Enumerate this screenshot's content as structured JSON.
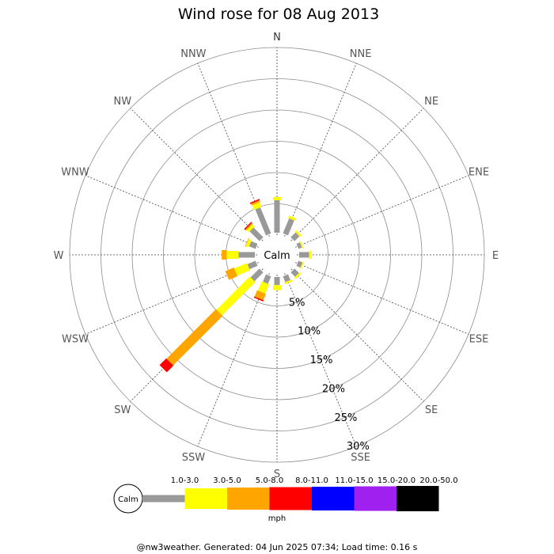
{
  "chart_data": {
    "type": "wind-rose",
    "title": "Wind rose for 08 Aug 2013",
    "directions": [
      "N",
      "NNE",
      "NE",
      "ENE",
      "E",
      "ESE",
      "SE",
      "SSE",
      "S",
      "SSW",
      "SW",
      "WSW",
      "W",
      "WNW",
      "NW",
      "NNW"
    ],
    "ring_labels": [
      "5%",
      "10%",
      "15%",
      "20%",
      "25%",
      "30%"
    ],
    "rlim_percent": [
      0,
      30
    ],
    "calm_label": "Calm",
    "speed_bins": [
      {
        "label": "1.0-3.0",
        "color": "#999999"
      },
      {
        "label": "3.0-5.0",
        "color": "#ffff00"
      },
      {
        "label": "5.0-8.0",
        "color": "#ffa500"
      },
      {
        "label": "8.0-11.0",
        "color": "#ff0000"
      },
      {
        "label": "11.0-15.0",
        "color": "#0000ff"
      },
      {
        "label": "15.0-20.0",
        "color": "#a020f0"
      },
      {
        "label": "20.0-50.0",
        "color": "#000000"
      }
    ],
    "units": "mph",
    "series": [
      {
        "direction": "N",
        "values": [
          5.2,
          0.5,
          0,
          0,
          0,
          0,
          0
        ]
      },
      {
        "direction": "NNE",
        "values": [
          2.6,
          0.4,
          0,
          0,
          0,
          0,
          0
        ]
      },
      {
        "direction": "NE",
        "values": [
          1.1,
          0.3,
          0,
          0,
          0,
          0,
          0
        ]
      },
      {
        "direction": "ENE",
        "values": [
          0.6,
          0.2,
          0,
          0,
          0,
          0,
          0
        ]
      },
      {
        "direction": "E",
        "values": [
          1.6,
          0.4,
          0,
          0,
          0,
          0,
          0
        ]
      },
      {
        "direction": "ESE",
        "values": [
          0.7,
          0.2,
          0,
          0,
          0,
          0,
          0
        ]
      },
      {
        "direction": "SE",
        "values": [
          1.0,
          0.3,
          0,
          0,
          0,
          0,
          0
        ]
      },
      {
        "direction": "SSE",
        "values": [
          1.0,
          0.3,
          0,
          0,
          0,
          0,
          0
        ]
      },
      {
        "direction": "S",
        "values": [
          1.3,
          0.8,
          0,
          0,
          0,
          0,
          0
        ]
      },
      {
        "direction": "SSW",
        "values": [
          1.3,
          1.6,
          1.1,
          0.2,
          0,
          0,
          0
        ]
      },
      {
        "direction": "SW",
        "values": [
          2.0,
          7.5,
          11.2,
          1.5,
          0,
          0,
          0
        ]
      },
      {
        "direction": "WSW",
        "values": [
          1.4,
          2.2,
          1.5,
          0,
          0,
          0,
          0
        ]
      },
      {
        "direction": "W",
        "values": [
          2.6,
          1.9,
          0.8,
          0,
          0,
          0,
          0
        ]
      },
      {
        "direction": "WNW",
        "values": [
          1.1,
          0.5,
          0.1,
          0,
          0,
          0,
          0
        ]
      },
      {
        "direction": "NW",
        "values": [
          2.2,
          0.5,
          0.2,
          0.2,
          0,
          0,
          0
        ]
      },
      {
        "direction": "NNW",
        "values": [
          4.5,
          0.8,
          0.3,
          0.2,
          0,
          0,
          0
        ]
      }
    ]
  },
  "footer": "@nw3weather. Generated: 04 Jun 2025 07:34; Load time: 0.16 s"
}
